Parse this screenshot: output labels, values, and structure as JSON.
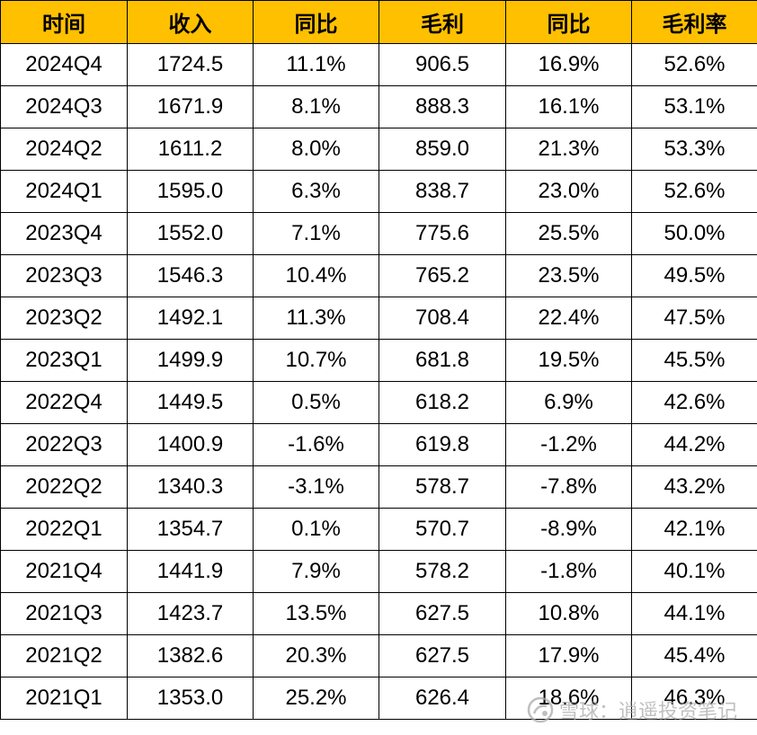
{
  "table": {
    "headers": [
      "时间",
      "收入",
      "同比",
      "毛利",
      "同比",
      "毛利率"
    ],
    "header_color": "#FFC000",
    "rows": [
      [
        "2024Q4",
        "1724.5",
        "11.1%",
        "906.5",
        "16.9%",
        "52.6%"
      ],
      [
        "2024Q3",
        "1671.9",
        "8.1%",
        "888.3",
        "16.1%",
        "53.1%"
      ],
      [
        "2024Q2",
        "1611.2",
        "8.0%",
        "859.0",
        "21.3%",
        "53.3%"
      ],
      [
        "2024Q1",
        "1595.0",
        "6.3%",
        "838.7",
        "23.0%",
        "52.6%"
      ],
      [
        "2023Q4",
        "1552.0",
        "7.1%",
        "775.6",
        "25.5%",
        "50.0%"
      ],
      [
        "2023Q3",
        "1546.3",
        "10.4%",
        "765.2",
        "23.5%",
        "49.5%"
      ],
      [
        "2023Q2",
        "1492.1",
        "11.3%",
        "708.4",
        "22.4%",
        "47.5%"
      ],
      [
        "2023Q1",
        "1499.9",
        "10.7%",
        "681.8",
        "19.5%",
        "45.5%"
      ],
      [
        "2022Q4",
        "1449.5",
        "0.5%",
        "618.2",
        "6.9%",
        "42.6%"
      ],
      [
        "2022Q3",
        "1400.9",
        "-1.6%",
        "619.8",
        "-1.2%",
        "44.2%"
      ],
      [
        "2022Q2",
        "1340.3",
        "-3.1%",
        "578.7",
        "-7.8%",
        "43.2%"
      ],
      [
        "2022Q1",
        "1354.7",
        "0.1%",
        "570.7",
        "-8.9%",
        "42.1%"
      ],
      [
        "2021Q4",
        "1441.9",
        "7.9%",
        "578.2",
        "-1.8%",
        "40.1%"
      ],
      [
        "2021Q3",
        "1423.7",
        "13.5%",
        "627.5",
        "10.8%",
        "44.1%"
      ],
      [
        "2021Q2",
        "1382.6",
        "20.3%",
        "627.5",
        "17.9%",
        "45.4%"
      ],
      [
        "2021Q1",
        "1353.0",
        "25.2%",
        "626.4",
        "18.6%",
        "46.3%"
      ]
    ]
  },
  "watermark": {
    "icon": "snowball-logo-icon",
    "text": "雪球：逍遥投资笔记"
  }
}
